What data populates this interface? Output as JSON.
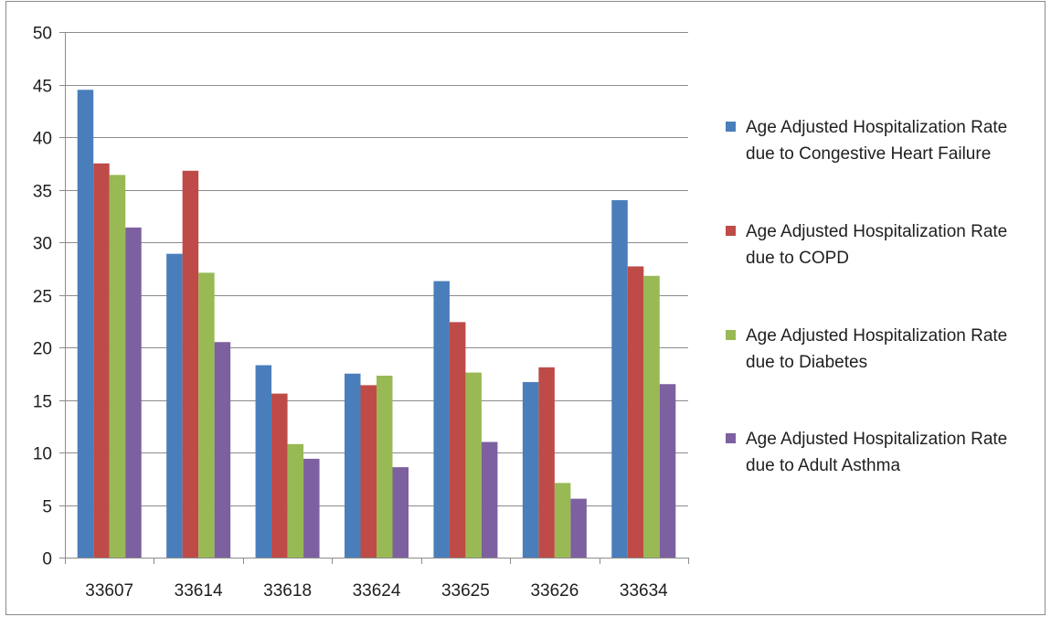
{
  "chart_data": {
    "type": "bar",
    "title": "",
    "xlabel": "",
    "ylabel": "",
    "ylim": [
      0,
      50
    ],
    "yticks": [
      0,
      5,
      10,
      15,
      20,
      25,
      30,
      35,
      40,
      45,
      50
    ],
    "grid": true,
    "legend_position": "right",
    "categories": [
      "33607",
      "33614",
      "33618",
      "33624",
      "33625",
      "33626",
      "33634"
    ],
    "series": [
      {
        "name": "Age Adjusted Hospitalization Rate due to Congestive Heart Failure",
        "color": "#4a7ebb",
        "values": [
          44.5,
          28.9,
          18.3,
          17.5,
          26.3,
          16.7,
          34.0
        ]
      },
      {
        "name": "Age Adjusted Hospitalization Rate due to COPD",
        "color": "#be4b48",
        "values": [
          37.5,
          36.8,
          15.6,
          16.4,
          22.4,
          18.1,
          27.7
        ]
      },
      {
        "name": "Age Adjusted Hospitalization Rate due to Diabetes",
        "color": "#98b954",
        "values": [
          36.4,
          27.1,
          10.8,
          17.3,
          17.6,
          7.1,
          26.8
        ]
      },
      {
        "name": "Age Adjusted Hospitalization Rate due to Adult Asthma",
        "color": "#7d60a0",
        "values": [
          31.4,
          20.5,
          9.4,
          8.6,
          11.0,
          5.6,
          16.5
        ]
      }
    ]
  }
}
